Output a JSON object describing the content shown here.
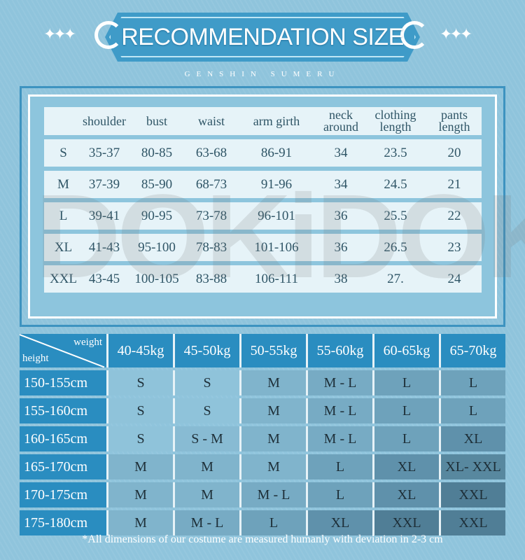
{
  "header": {
    "title": "RECOMMENDATION SIZE",
    "subtitle": "GENSHIN SUMERU"
  },
  "watermark": "DOKiDOKi",
  "measurements": {
    "columns": [
      "",
      "shoulder",
      "bust",
      "waist",
      "arm girth",
      "neck around",
      "clothing length",
      "pants length"
    ],
    "rows": [
      [
        "S",
        "35-37",
        "80-85",
        "63-68",
        "86-91",
        "34",
        "23.5",
        "20"
      ],
      [
        "M",
        "37-39",
        "85-90",
        "68-73",
        "91-96",
        "34",
        "24.5",
        "21"
      ],
      [
        "L",
        "39-41",
        "90-95",
        "73-78",
        "96-101",
        "36",
        "25.5",
        "22"
      ],
      [
        "XL",
        "41-43",
        "95-100",
        "78-83",
        "101-106",
        "36",
        "26.5",
        "23"
      ],
      [
        "XXL",
        "43-45",
        "100-105",
        "83-88",
        "106-111",
        "38",
        "27.",
        "24"
      ]
    ]
  },
  "size_chart": {
    "corner_weight": "weight",
    "corner_height": "height",
    "weights": [
      "40-45kg",
      "45-50kg",
      "50-55kg",
      "55-60kg",
      "60-65kg",
      "65-70kg"
    ],
    "rows": [
      {
        "height": "150-155cm",
        "sizes": [
          "S",
          "S",
          "M",
          "M - L",
          "L",
          "L"
        ]
      },
      {
        "height": "155-160cm",
        "sizes": [
          "S",
          "S",
          "M",
          "M - L",
          "L",
          "L"
        ]
      },
      {
        "height": "160-165cm",
        "sizes": [
          "S",
          "S - M",
          "M",
          "M - L",
          "L",
          "XL"
        ]
      },
      {
        "height": "165-170cm",
        "sizes": [
          "M",
          "M",
          "M",
          "L",
          "XL",
          "XL- XXL"
        ]
      },
      {
        "height": "170-175cm",
        "sizes": [
          "M",
          "M",
          "M - L",
          "L",
          "XL",
          "XXL"
        ]
      },
      {
        "height": "175-180cm",
        "sizes": [
          "M",
          "M - L",
          "L",
          "XL",
          "XXL",
          "XXL"
        ]
      }
    ]
  },
  "footnote": "*All dimensions of our costume are measured humanly with deviation in 2-3 cm",
  "colors": {
    "S": "#8fc3da",
    "S - M": "#88bbd3",
    "M": "#80b4cc",
    "M - L": "#77abc4",
    "L": "#6ea2bb",
    "XL": "#5f91ab",
    "XL- XXL": "#58889f",
    "XXL": "#507e96"
  }
}
